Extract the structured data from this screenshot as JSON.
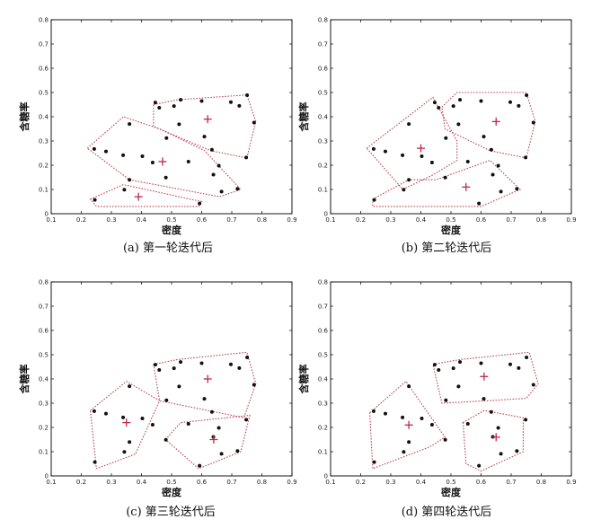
{
  "chart_data": [
    {
      "type": "scatter",
      "caption": "(a) 第一轮迭代后",
      "xlabel": "密度",
      "ylabel": "含糖率",
      "xlim": [
        0.1,
        0.9
      ],
      "ylim": [
        0,
        0.8
      ],
      "xticks": [
        "0.1",
        "0.2",
        "0.3",
        "0.4",
        "0.5",
        "0.6",
        "0.7",
        "0.8",
        "0.9"
      ],
      "yticks": [
        "0",
        "0.1",
        "0.2",
        "0.3",
        "0.4",
        "0.5",
        "0.6",
        "0.7",
        "0.8"
      ],
      "points": [
        [
          0.243,
          0.267
        ],
        [
          0.245,
          0.057
        ],
        [
          0.282,
          0.257
        ],
        [
          0.339,
          0.241
        ],
        [
          0.343,
          0.099
        ],
        [
          0.36,
          0.37
        ],
        [
          0.36,
          0.14
        ],
        [
          0.403,
          0.237
        ],
        [
          0.437,
          0.211
        ],
        [
          0.481,
          0.149
        ],
        [
          0.525,
          0.369
        ],
        [
          0.593,
          0.042
        ],
        [
          0.609,
          0.318
        ],
        [
          0.634,
          0.264
        ],
        [
          0.639,
          0.161
        ],
        [
          0.657,
          0.198
        ],
        [
          0.666,
          0.091
        ],
        [
          0.697,
          0.46
        ],
        [
          0.719,
          0.103
        ],
        [
          0.748,
          0.232
        ],
        [
          0.774,
          0.376
        ],
        [
          0.751,
          0.489
        ],
        [
          0.725,
          0.445
        ],
        [
          0.556,
          0.215
        ],
        [
          0.459,
          0.437
        ],
        [
          0.446,
          0.459
        ],
        [
          0.483,
          0.312
        ],
        [
          0.508,
          0.444
        ],
        [
          0.53,
          0.47
        ],
        [
          0.6,
          0.465
        ]
      ],
      "centroids": [
        [
          0.62,
          0.39
        ],
        [
          0.47,
          0.215
        ],
        [
          0.39,
          0.07
        ]
      ],
      "hulls": [
        [
          [
            0.44,
            0.45
          ],
          [
            0.52,
            0.47
          ],
          [
            0.75,
            0.49
          ],
          [
            0.78,
            0.38
          ],
          [
            0.75,
            0.23
          ],
          [
            0.63,
            0.26
          ],
          [
            0.44,
            0.36
          ]
        ],
        [
          [
            0.22,
            0.27
          ],
          [
            0.34,
            0.4
          ],
          [
            0.46,
            0.35
          ],
          [
            0.61,
            0.26
          ],
          [
            0.73,
            0.1
          ],
          [
            0.66,
            0.07
          ],
          [
            0.36,
            0.14
          ]
        ],
        [
          [
            0.23,
            0.06
          ],
          [
            0.34,
            0.12
          ],
          [
            0.6,
            0.05
          ],
          [
            0.59,
            0.03
          ],
          [
            0.25,
            0.03
          ]
        ]
      ]
    },
    {
      "type": "scatter",
      "caption": "(b) 第二轮迭代后",
      "xlabel": "密度",
      "ylabel": "含糖率",
      "xlim": [
        0.1,
        0.9
      ],
      "ylim": [
        0,
        0.8
      ],
      "xticks": [
        "0.1",
        "0.2",
        "0.3",
        "0.4",
        "0.5",
        "0.6",
        "0.7",
        "0.8",
        "0.9"
      ],
      "yticks": [
        "0",
        "0.1",
        "0.2",
        "0.3",
        "0.4",
        "0.5",
        "0.6",
        "0.7",
        "0.8"
      ],
      "points": [
        [
          0.243,
          0.267
        ],
        [
          0.245,
          0.057
        ],
        [
          0.282,
          0.257
        ],
        [
          0.339,
          0.241
        ],
        [
          0.343,
          0.099
        ],
        [
          0.36,
          0.37
        ],
        [
          0.36,
          0.14
        ],
        [
          0.403,
          0.237
        ],
        [
          0.437,
          0.211
        ],
        [
          0.481,
          0.149
        ],
        [
          0.525,
          0.369
        ],
        [
          0.593,
          0.042
        ],
        [
          0.609,
          0.318
        ],
        [
          0.634,
          0.264
        ],
        [
          0.639,
          0.161
        ],
        [
          0.657,
          0.198
        ],
        [
          0.666,
          0.091
        ],
        [
          0.697,
          0.46
        ],
        [
          0.719,
          0.103
        ],
        [
          0.748,
          0.232
        ],
        [
          0.774,
          0.376
        ],
        [
          0.751,
          0.489
        ],
        [
          0.725,
          0.445
        ],
        [
          0.556,
          0.215
        ],
        [
          0.459,
          0.437
        ],
        [
          0.446,
          0.459
        ],
        [
          0.483,
          0.312
        ],
        [
          0.508,
          0.444
        ],
        [
          0.53,
          0.47
        ],
        [
          0.6,
          0.465
        ]
      ],
      "centroids": [
        [
          0.65,
          0.38
        ],
        [
          0.4,
          0.27
        ],
        [
          0.55,
          0.11
        ]
      ],
      "hulls": [
        [
          [
            0.47,
            0.44
          ],
          [
            0.52,
            0.5
          ],
          [
            0.75,
            0.5
          ],
          [
            0.78,
            0.38
          ],
          [
            0.75,
            0.23
          ],
          [
            0.63,
            0.26
          ],
          [
            0.48,
            0.35
          ]
        ],
        [
          [
            0.22,
            0.27
          ],
          [
            0.44,
            0.48
          ],
          [
            0.52,
            0.3
          ],
          [
            0.52,
            0.22
          ],
          [
            0.44,
            0.16
          ],
          [
            0.34,
            0.1
          ]
        ],
        [
          [
            0.24,
            0.06
          ],
          [
            0.36,
            0.14
          ],
          [
            0.45,
            0.14
          ],
          [
            0.63,
            0.22
          ],
          [
            0.73,
            0.1
          ],
          [
            0.6,
            0.03
          ],
          [
            0.24,
            0.03
          ]
        ]
      ]
    },
    {
      "type": "scatter",
      "caption": "(c) 第三轮迭代后",
      "xlabel": "密度",
      "ylabel": "含糖率",
      "xlim": [
        0.1,
        0.9
      ],
      "ylim": [
        0,
        0.8
      ],
      "xticks": [
        "0.1",
        "0.2",
        "0.3",
        "0.4",
        "0.5",
        "0.6",
        "0.7",
        "0.8",
        "0.9"
      ],
      "yticks": [
        "0",
        "0.1",
        "0.2",
        "0.3",
        "0.4",
        "0.5",
        "0.6",
        "0.7",
        "0.8"
      ],
      "points": [
        [
          0.243,
          0.267
        ],
        [
          0.245,
          0.057
        ],
        [
          0.282,
          0.257
        ],
        [
          0.339,
          0.241
        ],
        [
          0.343,
          0.099
        ],
        [
          0.36,
          0.37
        ],
        [
          0.36,
          0.14
        ],
        [
          0.403,
          0.237
        ],
        [
          0.437,
          0.211
        ],
        [
          0.481,
          0.149
        ],
        [
          0.525,
          0.369
        ],
        [
          0.593,
          0.042
        ],
        [
          0.609,
          0.318
        ],
        [
          0.634,
          0.264
        ],
        [
          0.639,
          0.161
        ],
        [
          0.657,
          0.198
        ],
        [
          0.666,
          0.091
        ],
        [
          0.697,
          0.46
        ],
        [
          0.719,
          0.103
        ],
        [
          0.748,
          0.232
        ],
        [
          0.774,
          0.376
        ],
        [
          0.751,
          0.489
        ],
        [
          0.725,
          0.445
        ],
        [
          0.556,
          0.215
        ],
        [
          0.459,
          0.437
        ],
        [
          0.446,
          0.459
        ],
        [
          0.483,
          0.312
        ],
        [
          0.508,
          0.444
        ],
        [
          0.53,
          0.47
        ],
        [
          0.6,
          0.465
        ]
      ],
      "centroids": [
        [
          0.62,
          0.4
        ],
        [
          0.35,
          0.22
        ],
        [
          0.64,
          0.15
        ]
      ],
      "hulls": [
        [
          [
            0.44,
            0.46
          ],
          [
            0.52,
            0.48
          ],
          [
            0.75,
            0.51
          ],
          [
            0.78,
            0.38
          ],
          [
            0.74,
            0.24
          ],
          [
            0.62,
            0.27
          ],
          [
            0.46,
            0.31
          ]
        ],
        [
          [
            0.23,
            0.27
          ],
          [
            0.35,
            0.39
          ],
          [
            0.46,
            0.31
          ],
          [
            0.38,
            0.09
          ],
          [
            0.25,
            0.03
          ]
        ],
        [
          [
            0.48,
            0.15
          ],
          [
            0.53,
            0.22
          ],
          [
            0.76,
            0.25
          ],
          [
            0.73,
            0.1
          ],
          [
            0.59,
            0.03
          ]
        ]
      ]
    },
    {
      "type": "scatter",
      "caption": "(d) 第四轮迭代后",
      "xlabel": "密度",
      "ylabel": "含糖率",
      "xlim": [
        0.1,
        0.9
      ],
      "ylim": [
        0,
        0.8
      ],
      "xticks": [
        "0.1",
        "0.2",
        "0.3",
        "0.4",
        "0.5",
        "0.6",
        "0.7",
        "0.8",
        "0.9"
      ],
      "yticks": [
        "0",
        "0.1",
        "0.2",
        "0.3",
        "0.4",
        "0.5",
        "0.6",
        "0.7",
        "0.8"
      ],
      "points": [
        [
          0.243,
          0.267
        ],
        [
          0.245,
          0.057
        ],
        [
          0.282,
          0.257
        ],
        [
          0.339,
          0.241
        ],
        [
          0.343,
          0.099
        ],
        [
          0.36,
          0.37
        ],
        [
          0.36,
          0.14
        ],
        [
          0.403,
          0.237
        ],
        [
          0.437,
          0.211
        ],
        [
          0.481,
          0.149
        ],
        [
          0.525,
          0.369
        ],
        [
          0.593,
          0.042
        ],
        [
          0.609,
          0.318
        ],
        [
          0.634,
          0.264
        ],
        [
          0.639,
          0.161
        ],
        [
          0.657,
          0.198
        ],
        [
          0.666,
          0.091
        ],
        [
          0.697,
          0.46
        ],
        [
          0.719,
          0.103
        ],
        [
          0.748,
          0.232
        ],
        [
          0.774,
          0.376
        ],
        [
          0.751,
          0.489
        ],
        [
          0.725,
          0.445
        ],
        [
          0.556,
          0.215
        ],
        [
          0.459,
          0.437
        ],
        [
          0.446,
          0.459
        ],
        [
          0.483,
          0.312
        ],
        [
          0.508,
          0.444
        ],
        [
          0.53,
          0.47
        ],
        [
          0.6,
          0.465
        ]
      ],
      "centroids": [
        [
          0.61,
          0.41
        ],
        [
          0.36,
          0.21
        ],
        [
          0.65,
          0.16
        ]
      ],
      "hulls": [
        [
          [
            0.44,
            0.46
          ],
          [
            0.53,
            0.48
          ],
          [
            0.76,
            0.51
          ],
          [
            0.79,
            0.38
          ],
          [
            0.75,
            0.32
          ],
          [
            0.62,
            0.31
          ],
          [
            0.47,
            0.3
          ]
        ],
        [
          [
            0.23,
            0.26
          ],
          [
            0.35,
            0.39
          ],
          [
            0.48,
            0.16
          ],
          [
            0.43,
            0.12
          ],
          [
            0.24,
            0.03
          ]
        ],
        [
          [
            0.54,
            0.22
          ],
          [
            0.61,
            0.27
          ],
          [
            0.74,
            0.24
          ],
          [
            0.74,
            0.1
          ],
          [
            0.6,
            0.02
          ],
          [
            0.55,
            0.05
          ]
        ]
      ]
    }
  ],
  "colors": {
    "hull": "#b84a5c",
    "centroid": "#c0284a",
    "point": "#111111",
    "axis": "#000000"
  }
}
